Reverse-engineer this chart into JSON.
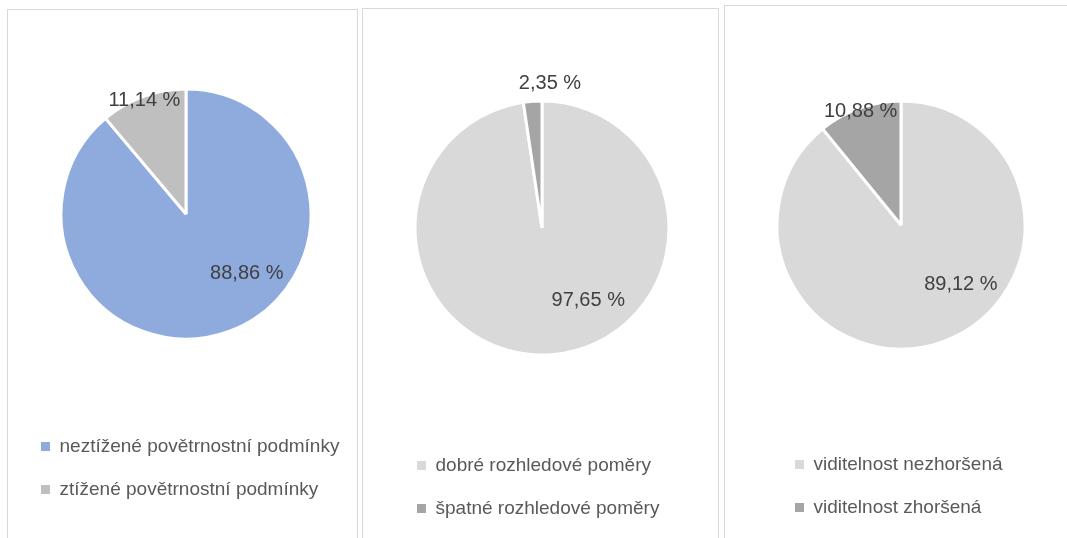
{
  "chart_data": [
    {
      "type": "pie",
      "categories": [
        "neztížené povětrnostní podmínky",
        "ztížené povětrnostní podmínky"
      ],
      "values": [
        88.86,
        11.14
      ],
      "colors": [
        "#8faadc",
        "#bfbfbf"
      ],
      "value_labels": [
        "88,86 %",
        "11,14 %"
      ],
      "legend": "bottom"
    },
    {
      "type": "pie",
      "categories": [
        "dobré rozhledové poměry",
        "špatné rozhledové poměry"
      ],
      "values": [
        97.65,
        2.35
      ],
      "colors": [
        "#d9d9d9",
        "#a5a5a5"
      ],
      "value_labels": [
        "97,65 %",
        "2,35 %"
      ],
      "legend": "bottom"
    },
    {
      "type": "pie",
      "categories": [
        "viditelnost nezhoršená",
        "viditelnost zhoršená"
      ],
      "values": [
        89.12,
        10.88
      ],
      "colors": [
        "#d9d9d9",
        "#a5a5a5"
      ],
      "value_labels": [
        "89,12 %",
        "10,88 %"
      ],
      "legend": "bottom"
    }
  ]
}
